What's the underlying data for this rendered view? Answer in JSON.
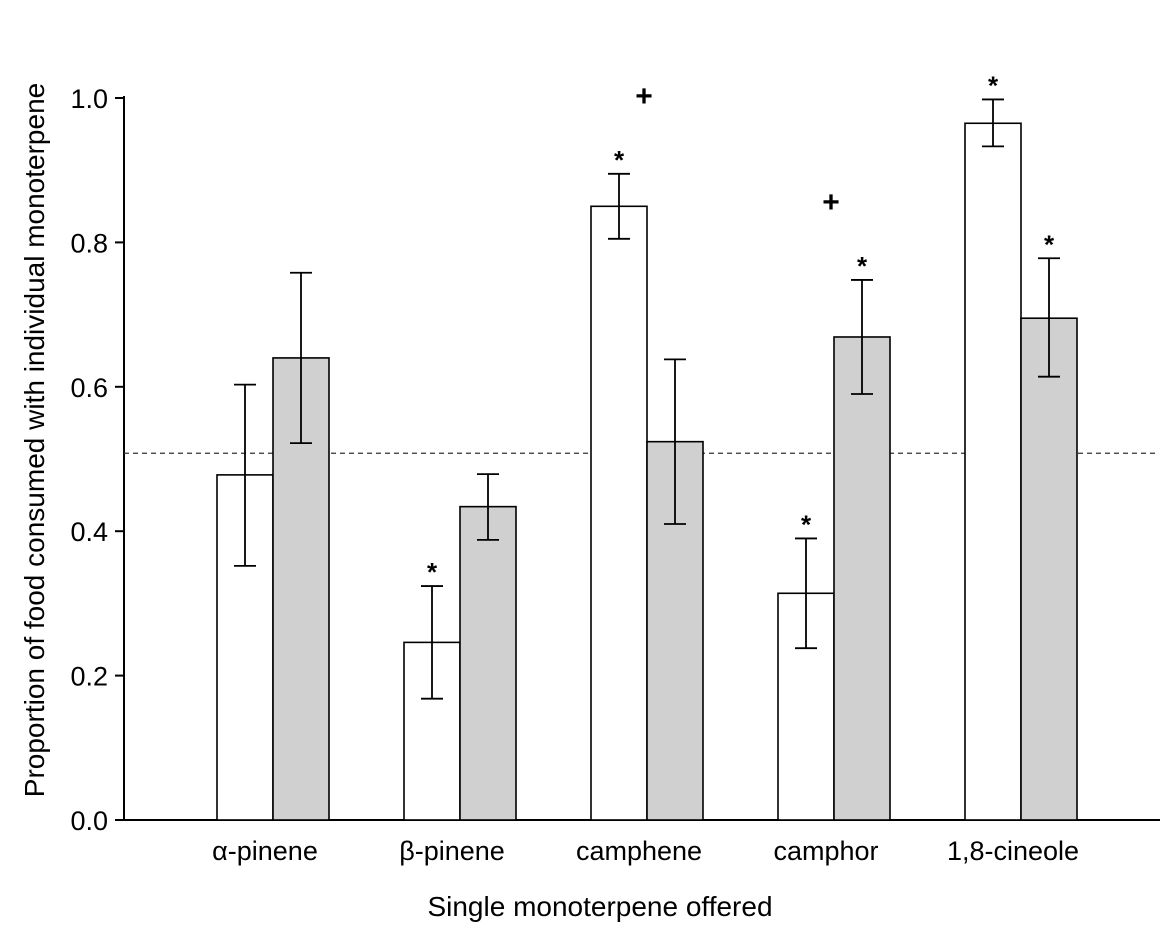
{
  "chart_data": {
    "type": "bar",
    "title": "",
    "xlabel": "Single monoterpene offered",
    "ylabel": "Proportion of food consumed with individual monoterpene",
    "ylim": [
      0,
      1.0
    ],
    "yticks": [
      "0.0",
      "0.2",
      "0.4",
      "0.6",
      "0.8",
      "1.0"
    ],
    "grid": false,
    "categories": [
      "α-pinene",
      "β-pinene",
      "camphene",
      "camphor",
      "1,8-cineole"
    ],
    "series": [
      {
        "color": "#ffffff",
        "values": [
          0.478,
          0.246,
          0.85,
          0.314,
          0.965
        ],
        "error_low": [
          0.352,
          0.168,
          0.805,
          0.238,
          0.933
        ],
        "error_high": [
          0.603,
          0.324,
          0.895,
          0.39,
          0.998
        ],
        "markers": [
          "",
          "*",
          "*",
          "*",
          "*"
        ]
      },
      {
        "color": "#d0d0d0",
        "values": [
          0.64,
          0.434,
          0.524,
          0.669,
          0.695
        ],
        "error_low": [
          0.522,
          0.388,
          0.41,
          0.59,
          0.614
        ],
        "error_high": [
          0.758,
          0.479,
          0.638,
          0.748,
          0.778
        ],
        "markers": [
          "",
          "",
          "",
          "*",
          "*"
        ]
      }
    ],
    "reference_line": 0.508,
    "category_markers": [
      "",
      "",
      "+",
      "+",
      ""
    ]
  }
}
